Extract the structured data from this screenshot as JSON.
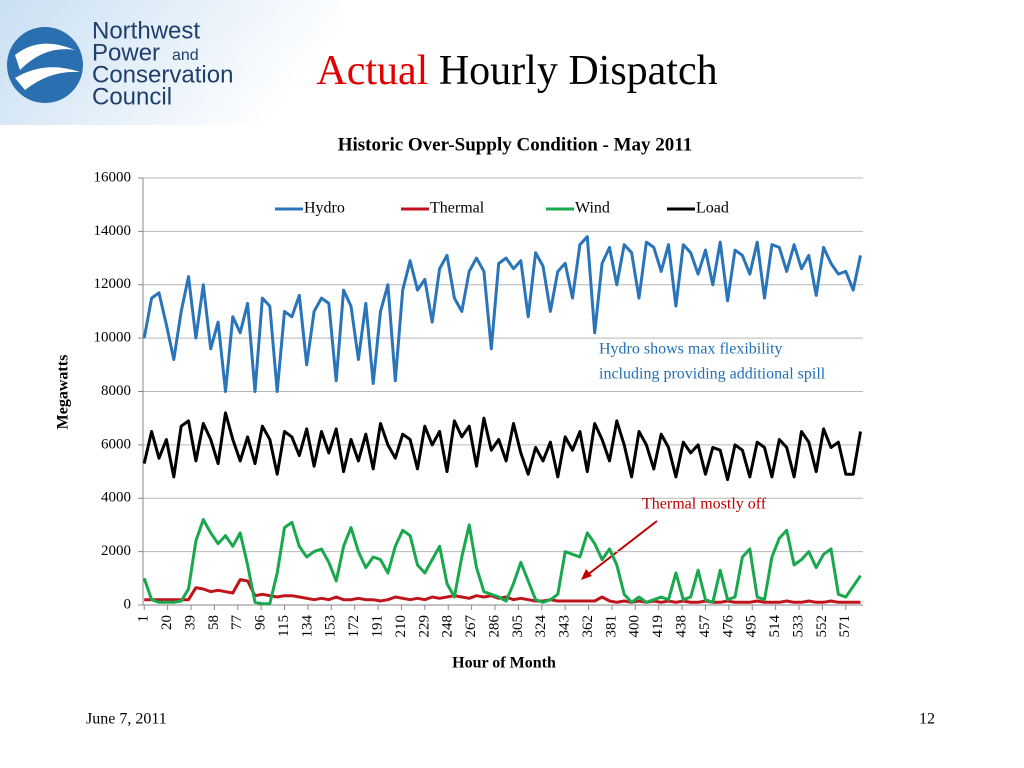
{
  "slide": {
    "logo": [
      "Northwest",
      "Power",
      "and",
      "Conservation",
      "Council"
    ],
    "title": [
      "Actual",
      "Hourly Dispatch"
    ],
    "title_colors": [
      "#e00000",
      "#000000"
    ],
    "date": "June 7, 2011",
    "page": "12"
  },
  "chart_data": {
    "type": "line",
    "title": "Historic Over-Supply Condition - May 2011",
    "x_label": "Hour of Month",
    "y_label": "Megawatts",
    "legend": "top",
    "grid": true,
    "xlim": [
      0,
      585
    ],
    "xticks": [
      1,
      20,
      39,
      58,
      77,
      96,
      115,
      134,
      153,
      172,
      191,
      210,
      229,
      248,
      267,
      286,
      305,
      324,
      343,
      362,
      381,
      400,
      419,
      438,
      457,
      476,
      495,
      514,
      533,
      552,
      571
    ],
    "ylim": [
      0,
      16000
    ],
    "yticks": [
      0,
      2000,
      4000,
      6000,
      8000,
      10000,
      12000,
      14000,
      16000
    ],
    "x": [
      1,
      7,
      13,
      19,
      25,
      31,
      37,
      43,
      49,
      55,
      61,
      67,
      73,
      79,
      85,
      91,
      97,
      103,
      109,
      115,
      121,
      127,
      133,
      139,
      145,
      151,
      157,
      163,
      169,
      175,
      181,
      187,
      193,
      199,
      205,
      211,
      217,
      223,
      229,
      235,
      241,
      247,
      253,
      259,
      265,
      271,
      277,
      283,
      289,
      295,
      301,
      307,
      313,
      319,
      325,
      331,
      337,
      343,
      349,
      355,
      361,
      367,
      373,
      379,
      385,
      391,
      397,
      403,
      409,
      415,
      421,
      427,
      433,
      439,
      445,
      451,
      457,
      463,
      469,
      475,
      481,
      487,
      493,
      499,
      505,
      511,
      517,
      523,
      529,
      535,
      541,
      547,
      553,
      559,
      565,
      571,
      577,
      583
    ],
    "series": [
      {
        "name": "Hydro",
        "color": "#2a74b9",
        "values": [
          10000,
          11500,
          11700,
          10500,
          9200,
          11000,
          12300,
          10000,
          12000,
          9600,
          10600,
          8000,
          10800,
          10200,
          11300,
          8000,
          11500,
          11200,
          8000,
          11000,
          10800,
          11600,
          9000,
          11000,
          11500,
          11300,
          8400,
          11800,
          11200,
          9200,
          11300,
          8300,
          11000,
          12000,
          8400,
          11800,
          12900,
          11800,
          12200,
          10600,
          12600,
          13100,
          11500,
          11000,
          12500,
          13000,
          12500,
          9600,
          12800,
          13000,
          12600,
          12900,
          10800,
          13200,
          12700,
          11000,
          12500,
          12800,
          11500,
          13500,
          13800,
          10200,
          12800,
          13400,
          12000,
          13500,
          13200,
          11500,
          13600,
          13400,
          12500,
          13500,
          11200,
          13500,
          13200,
          12400,
          13300,
          12000,
          13600,
          11400,
          13300,
          13100,
          12400,
          13600,
          11500,
          13500,
          13400,
          12500,
          13500,
          12600,
          13100,
          11600,
          13400,
          12800,
          12400,
          12500,
          11800,
          13100
        ]
      },
      {
        "name": "Thermal",
        "color": "#c0141c",
        "values": [
          200,
          200,
          200,
          200,
          200,
          200,
          200,
          650,
          600,
          500,
          550,
          500,
          450,
          950,
          900,
          350,
          400,
          350,
          300,
          350,
          350,
          300,
          250,
          200,
          250,
          200,
          300,
          200,
          200,
          250,
          200,
          200,
          150,
          200,
          300,
          250,
          200,
          250,
          200,
          300,
          250,
          300,
          350,
          300,
          250,
          350,
          300,
          350,
          250,
          300,
          200,
          250,
          200,
          150,
          150,
          200,
          150,
          150,
          150,
          150,
          150,
          150,
          300,
          150,
          100,
          150,
          100,
          150,
          100,
          150,
          100,
          150,
          100,
          150,
          100,
          100,
          150,
          100,
          100,
          150,
          100,
          100,
          100,
          150,
          100,
          100,
          100,
          150,
          100,
          100,
          150,
          100,
          100,
          150,
          100,
          100,
          100,
          100
        ]
      },
      {
        "name": "Wind",
        "color": "#1aa84f",
        "values": [
          1000,
          200,
          100,
          100,
          100,
          150,
          600,
          2400,
          3200,
          2700,
          2300,
          2600,
          2200,
          2700,
          1500,
          100,
          50,
          50,
          1200,
          2900,
          3100,
          2200,
          1800,
          2000,
          2100,
          1600,
          900,
          2200,
          2900,
          2000,
          1400,
          1800,
          1700,
          1200,
          2200,
          2800,
          2600,
          1500,
          1200,
          1700,
          2200,
          800,
          300,
          1800,
          3000,
          1400,
          500,
          400,
          300,
          150,
          800,
          1600,
          900,
          200,
          100,
          200,
          400,
          2000,
          1900,
          1800,
          2700,
          2300,
          1700,
          2100,
          1500,
          400,
          100,
          300,
          100,
          200,
          300,
          200,
          1200,
          200,
          300,
          1300,
          200,
          100,
          1300,
          200,
          300,
          1800,
          2100,
          300,
          200,
          1800,
          2500,
          2800,
          1500,
          1700,
          2000,
          1400,
          1900,
          2100,
          400,
          300,
          700,
          1100
        ]
      },
      {
        "name": "Load",
        "color": "#000000",
        "values": [
          5300,
          6500,
          5500,
          6200,
          4800,
          6700,
          6900,
          5400,
          6800,
          6200,
          5300,
          7200,
          6200,
          5400,
          6300,
          5300,
          6700,
          6200,
          4900,
          6500,
          6300,
          5600,
          6600,
          5200,
          6500,
          5700,
          6600,
          5000,
          6200,
          5400,
          6400,
          5100,
          6800,
          6000,
          5500,
          6400,
          6200,
          5100,
          6700,
          6000,
          6500,
          5000,
          6900,
          6300,
          6700,
          5200,
          7000,
          5800,
          6200,
          5400,
          6800,
          5700,
          4900,
          5900,
          5400,
          6100,
          4800,
          6300,
          5800,
          6500,
          5000,
          6800,
          6200,
          5400,
          6900,
          6000,
          4800,
          6500,
          6000,
          5100,
          6400,
          5900,
          4800,
          6100,
          5700,
          6000,
          4900,
          5900,
          5800,
          4700,
          6000,
          5800,
          4800,
          6100,
          5900,
          4800,
          6200,
          5900,
          4800,
          6500,
          6100,
          5000,
          6600,
          5900,
          6100,
          4900,
          4900,
          6500
        ]
      }
    ],
    "annotations": [
      {
        "lines": [
          "Hydro shows max flexibility",
          "including providing additional spill"
        ],
        "color": "#1f6fb5"
      },
      {
        "lines": [
          "Thermal mostly off"
        ],
        "color": "#c00000"
      }
    ]
  }
}
